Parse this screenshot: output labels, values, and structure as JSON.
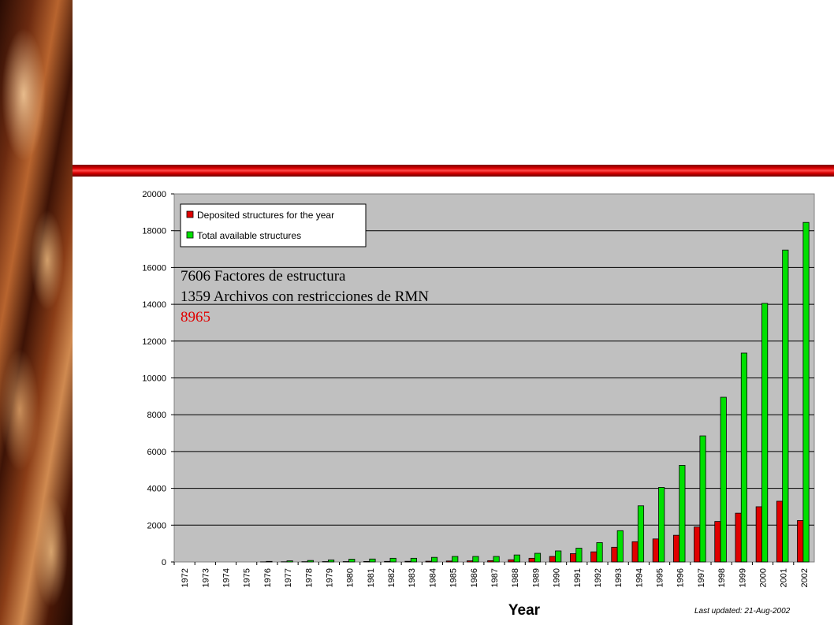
{
  "annotations": {
    "line1": "7606 Factores de estructura",
    "line2": "1359 Archivos con restricciones de RMN",
    "line3": "8965",
    "line3_color": "#e00000"
  },
  "footer": {
    "last_updated": "Last updated: 21-Aug-2002"
  },
  "chart_data": {
    "type": "bar",
    "xlabel": "Year",
    "ylabel": "",
    "ylim": [
      0,
      20000
    ],
    "y_ticks": [
      0,
      2000,
      4000,
      6000,
      8000,
      10000,
      12000,
      14000,
      16000,
      18000,
      20000
    ],
    "grid": true,
    "legend_position": "top-left",
    "background_color": "#c0c0c0",
    "categories": [
      "1972",
      "1973",
      "1974",
      "1975",
      "1976",
      "1977",
      "1978",
      "1979",
      "1980",
      "1981",
      "1982",
      "1983",
      "1984",
      "1985",
      "1986",
      "1987",
      "1988",
      "1989",
      "1990",
      "1991",
      "1992",
      "1993",
      "1994",
      "1995",
      "1996",
      "1997",
      "1998",
      "1999",
      "2000",
      "2001",
      "2002"
    ],
    "series": [
      {
        "name": "Deposited structures for the year",
        "color": "#e00000",
        "values": [
          0,
          0,
          0,
          0,
          5,
          10,
          15,
          20,
          20,
          25,
          30,
          35,
          40,
          50,
          60,
          70,
          120,
          200,
          300,
          450,
          550,
          800,
          1100,
          1250,
          1450,
          1900,
          2200,
          2650,
          3000,
          3300,
          2250
        ]
      },
      {
        "name": "Total available structures",
        "color": "#00e000",
        "values": [
          0,
          0,
          0,
          0,
          30,
          60,
          80,
          110,
          150,
          160,
          200,
          200,
          250,
          300,
          300,
          300,
          380,
          470,
          600,
          750,
          1050,
          1700,
          3050,
          4050,
          5250,
          6850,
          8950,
          11350,
          14050,
          16950,
          18450
        ]
      }
    ]
  }
}
